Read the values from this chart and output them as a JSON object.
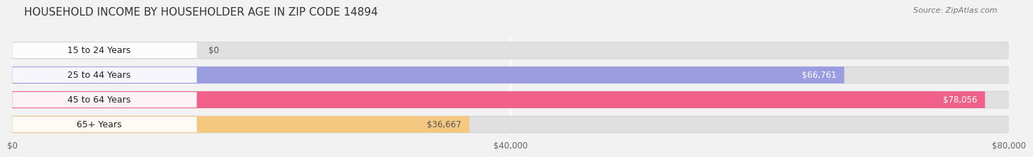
{
  "title": "HOUSEHOLD INCOME BY HOUSEHOLDER AGE IN ZIP CODE 14894",
  "source": "Source: ZipAtlas.com",
  "categories": [
    "15 to 24 Years",
    "25 to 44 Years",
    "45 to 64 Years",
    "65+ Years"
  ],
  "values": [
    0,
    66761,
    78056,
    36667
  ],
  "bar_colors": [
    "#6dcdd6",
    "#9a9de0",
    "#f0608a",
    "#f5c882"
  ],
  "label_colors": [
    "#555555",
    "#ffffff",
    "#ffffff",
    "#555555"
  ],
  "background_color": "#f2f2f2",
  "bar_bg_color": "#e0e0e0",
  "label_tab_color": "#ffffff",
  "xlim": [
    0,
    80000
  ],
  "xticks": [
    0,
    40000,
    80000
  ],
  "xticklabels": [
    "$0",
    "$40,000",
    "$80,000"
  ],
  "title_fontsize": 11,
  "source_fontsize": 8,
  "label_fontsize": 8.5,
  "tick_fontsize": 8.5,
  "cat_fontsize": 9
}
